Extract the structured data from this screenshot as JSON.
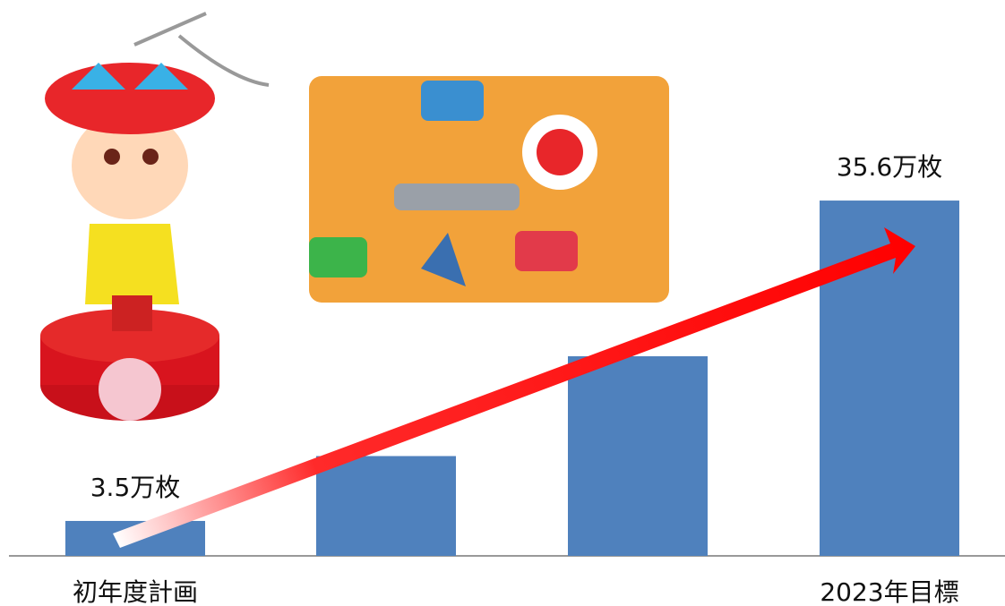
{
  "chart_data": {
    "type": "bar",
    "categories": [
      "初年度計画",
      null,
      null,
      "2023年目標"
    ],
    "values": [
      3.5,
      10,
      20,
      35.6
    ],
    "value_labels": [
      "3.5万枚",
      null,
      null,
      "35.6万枚"
    ],
    "color": "#4f81bd"
  }
}
